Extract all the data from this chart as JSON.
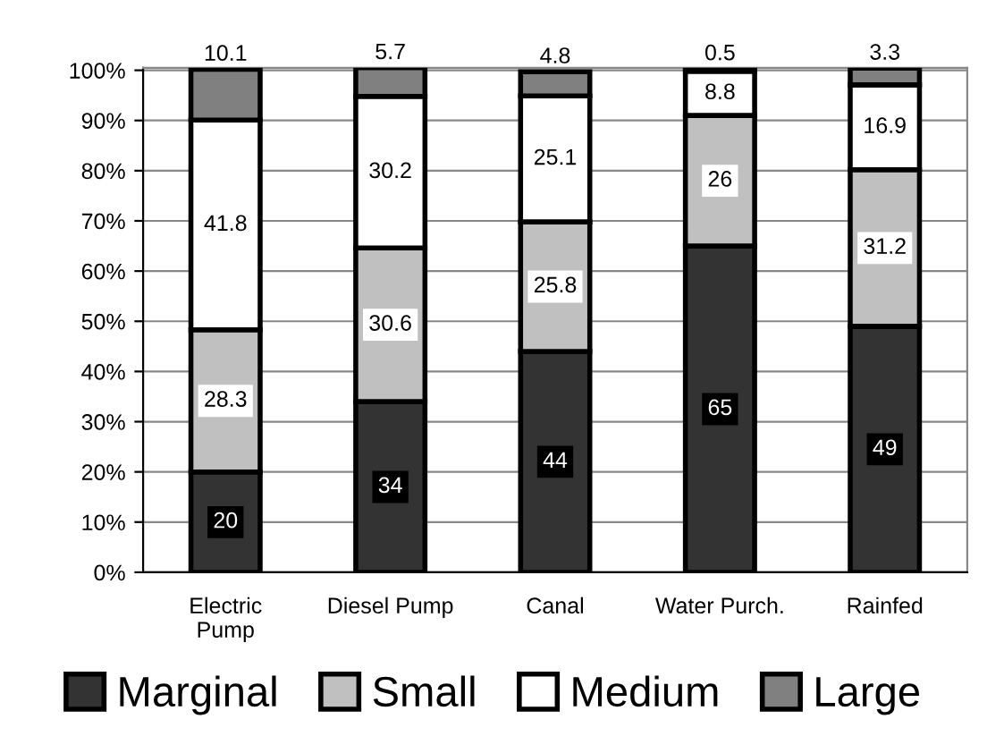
{
  "chart_data": {
    "type": "bar",
    "stacked": true,
    "categories": [
      "Electric\nPump",
      "Diesel Pump",
      "Canal",
      "Water Purch.",
      "Rainfed"
    ],
    "series": [
      {
        "name": "Marginal",
        "color": "#333333",
        "values": [
          20,
          34,
          44,
          65,
          49
        ]
      },
      {
        "name": "Small",
        "color": "#c0c0c0",
        "values": [
          28.3,
          30.6,
          25.8,
          26,
          31.2
        ]
      },
      {
        "name": "Medium",
        "color": "#ffffff",
        "values": [
          41.8,
          30.2,
          25.1,
          8.8,
          16.9
        ]
      },
      {
        "name": "Large",
        "color": "#808080",
        "values": [
          10.1,
          5.7,
          4.8,
          0.5,
          3.3
        ]
      }
    ],
    "ylim": [
      0,
      100.5
    ],
    "yticks": [
      {
        "value": 0,
        "label": "0%"
      },
      {
        "value": 10,
        "label": "10%"
      },
      {
        "value": 20,
        "label": "20%"
      },
      {
        "value": 30,
        "label": "30%"
      },
      {
        "value": 40,
        "label": "40%"
      },
      {
        "value": 50,
        "label": "50%"
      },
      {
        "value": 60,
        "label": "60%"
      },
      {
        "value": 70,
        "label": "70%"
      },
      {
        "value": 80,
        "label": "80%"
      },
      {
        "value": 90,
        "label": "90%"
      },
      {
        "value": 100,
        "label": "100%"
      }
    ],
    "grid": "y",
    "legend": "bottom",
    "data_labels": true
  }
}
